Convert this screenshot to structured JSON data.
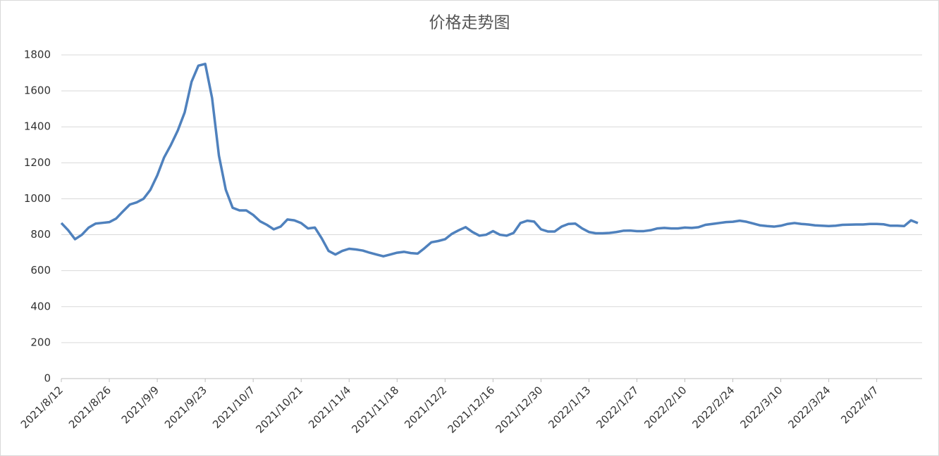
{
  "chart_data": {
    "type": "line",
    "title": "价格走势图",
    "categories": [
      "2021/8/12",
      null,
      null,
      null,
      null,
      null,
      null,
      "2021/8/26",
      null,
      null,
      null,
      null,
      null,
      null,
      "2021/9/9",
      null,
      null,
      null,
      null,
      null,
      null,
      "2021/9/23",
      null,
      null,
      null,
      null,
      null,
      null,
      "2021/10/7",
      null,
      null,
      null,
      null,
      null,
      null,
      "2021/10/21",
      null,
      null,
      null,
      null,
      null,
      null,
      "2021/11/4",
      null,
      null,
      null,
      null,
      null,
      null,
      "2021/11/18",
      null,
      null,
      null,
      null,
      null,
      null,
      "2021/12/2",
      null,
      null,
      null,
      null,
      null,
      null,
      "2021/12/16",
      null,
      null,
      null,
      null,
      null,
      null,
      "2021/12/30",
      null,
      null,
      null,
      null,
      null,
      null,
      "2022/1/13",
      null,
      null,
      null,
      null,
      null,
      null,
      "2022/1/27",
      null,
      null,
      null,
      null,
      null,
      null,
      "2022/2/10",
      null,
      null,
      null,
      null,
      null,
      null,
      "2022/2/24",
      null,
      null,
      null,
      null,
      null,
      null,
      "2022/3/10",
      null,
      null,
      null,
      null,
      null,
      null,
      "2022/3/24",
      null,
      null,
      null,
      null,
      null,
      null,
      "2022/4/7",
      null,
      null,
      null,
      null,
      null,
      null
    ],
    "series": [
      {
        "name": "价格",
        "color": "#4f81bd",
        "values": [
          865,
          825,
          775,
          800,
          840,
          862,
          866,
          870,
          890,
          930,
          968,
          980,
          1000,
          1050,
          1130,
          1230,
          1300,
          1380,
          1480,
          1650,
          1740,
          1750,
          1560,
          1240,
          1050,
          950,
          935,
          935,
          910,
          875,
          855,
          830,
          845,
          885,
          880,
          865,
          835,
          840,
          780,
          710,
          690,
          710,
          722,
          718,
          712,
          700,
          690,
          680,
          690,
          700,
          705,
          698,
          695,
          725,
          758,
          765,
          775,
          805,
          825,
          842,
          815,
          795,
          800,
          820,
          800,
          795,
          810,
          865,
          878,
          873,
          830,
          818,
          818,
          845,
          860,
          862,
          835,
          815,
          808,
          808,
          810,
          815,
          822,
          823,
          820,
          820,
          825,
          835,
          838,
          835,
          835,
          840,
          838,
          842,
          855,
          860,
          865,
          870,
          872,
          878,
          872,
          862,
          852,
          848,
          845,
          850,
          860,
          865,
          860,
          857,
          852,
          850,
          848,
          850,
          855,
          856,
          857,
          857,
          860,
          860,
          858,
          850,
          850,
          848,
          880,
          865
        ]
      }
    ],
    "ylim": [
      0,
      1800
    ],
    "yticks": [
      0,
      200,
      400,
      600,
      800,
      1000,
      1200,
      1400,
      1600,
      1800
    ],
    "grid": true
  }
}
